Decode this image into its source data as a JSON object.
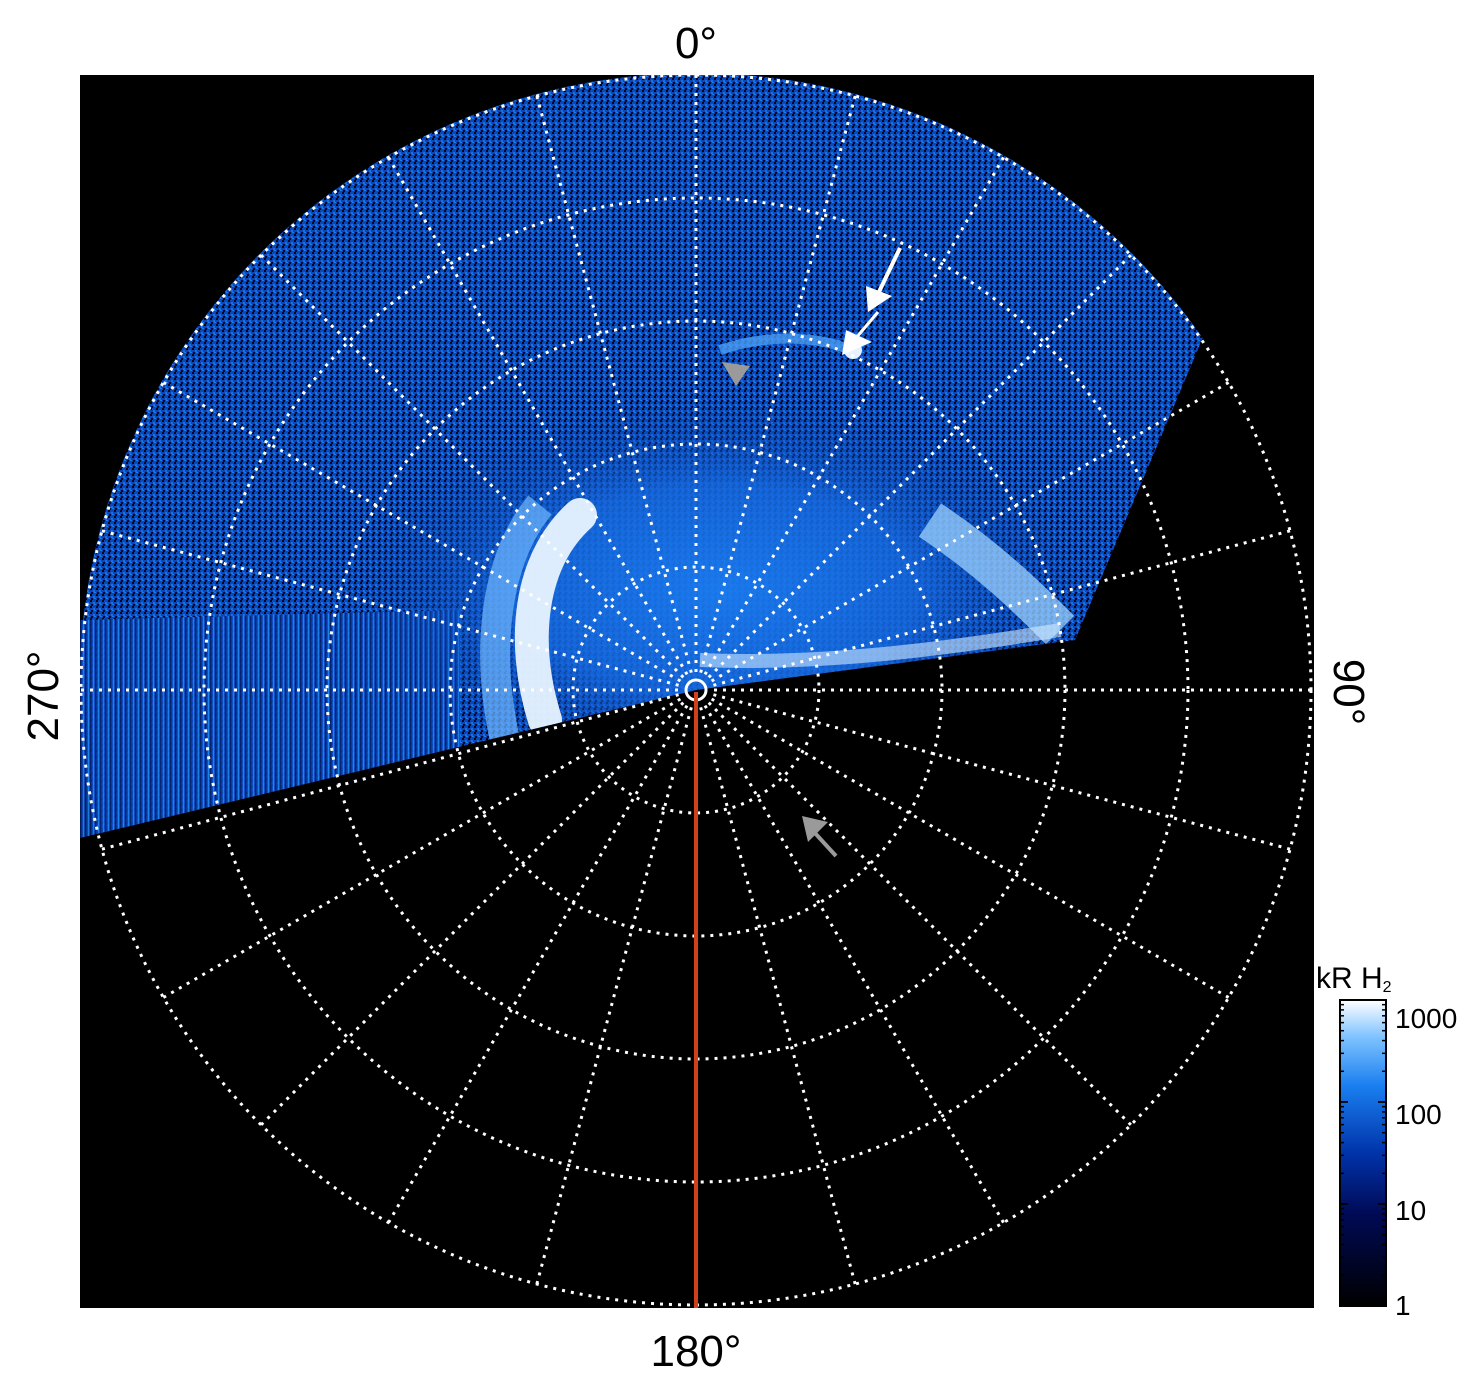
{
  "figure": {
    "angle_labels": {
      "top": "0°",
      "right": "90°",
      "bottom": "180°",
      "left": "270°"
    },
    "colorbar": {
      "unit_main": "kR H",
      "unit_sub": "2",
      "scale": "log",
      "range": [
        1,
        1000
      ],
      "ticks": [
        "1000",
        "100",
        "10",
        "1"
      ],
      "colors": [
        "#000000",
        "#000a55",
        "#0033aa",
        "#1a7ff0",
        "#7fc3ff",
        "#ffffff"
      ]
    },
    "background_color": "#000000",
    "grid_color": "#ffffff",
    "meridian_line_color": "#d0401a",
    "arrows": [
      {
        "name": "white-arrow-upper",
        "color": "#ffffff"
      },
      {
        "name": "white-arrow-lower",
        "color": "#ffffff"
      },
      {
        "name": "gray-arrowhead",
        "color": "#9a9a9a"
      },
      {
        "name": "gray-arrow-lower",
        "color": "#9a9a9a"
      }
    ]
  }
}
